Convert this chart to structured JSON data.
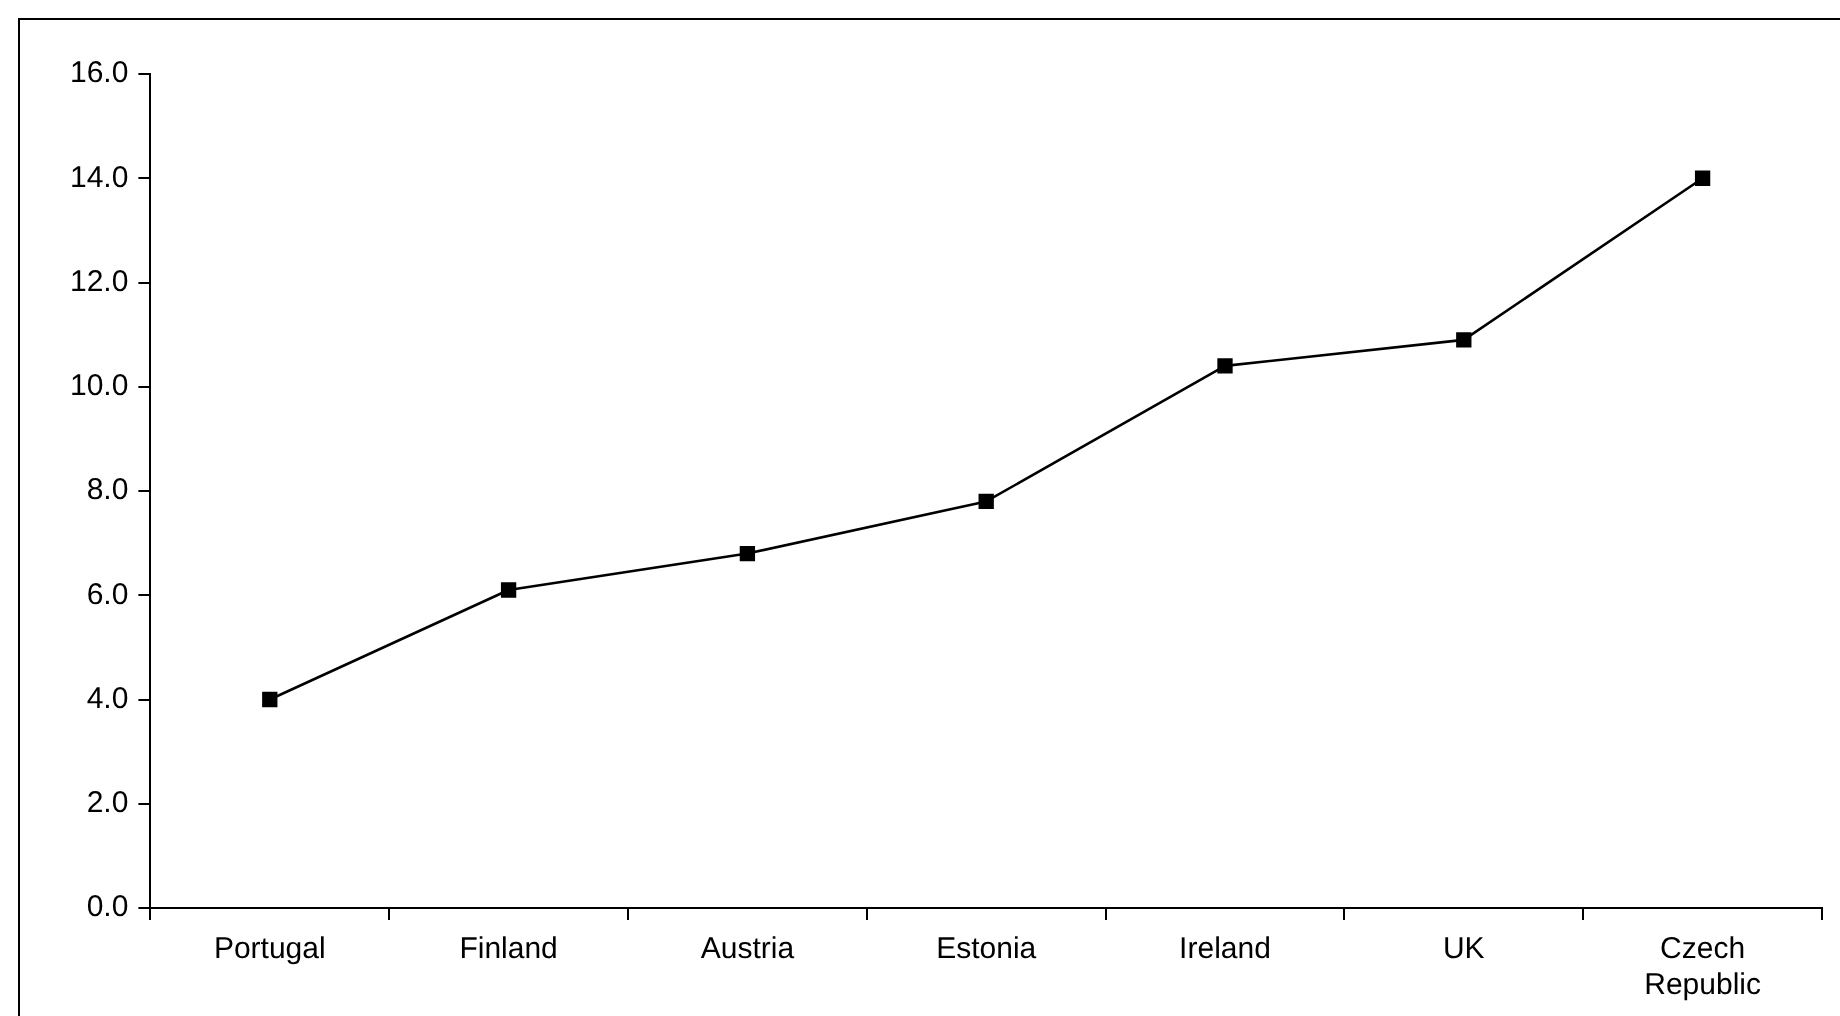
{
  "chart_data": {
    "type": "line",
    "categories": [
      "Portugal",
      "Finland",
      "Austria",
      "Estonia",
      "Ireland",
      "UK",
      "Czech Republic"
    ],
    "series": [
      {
        "color": "#000000",
        "values": [
          4.0,
          6.1,
          6.8,
          7.8,
          10.4,
          10.9,
          14.0
        ]
      }
    ],
    "ylim": [
      0,
      16
    ],
    "yticks": [
      {
        "value": 0,
        "label": "0.0"
      },
      {
        "value": 2,
        "label": "2.0"
      },
      {
        "value": 4,
        "label": "4.0"
      },
      {
        "value": 6,
        "label": "6.0"
      },
      {
        "value": 8,
        "label": "8.0"
      },
      {
        "value": 10,
        "label": "10.0"
      },
      {
        "value": 12,
        "label": "12.0"
      },
      {
        "value": 14,
        "label": "14.0"
      },
      {
        "value": 16,
        "label": "16.0"
      }
    ],
    "grid": false,
    "legend": false,
    "marker": "square",
    "line_style": "solid"
  }
}
